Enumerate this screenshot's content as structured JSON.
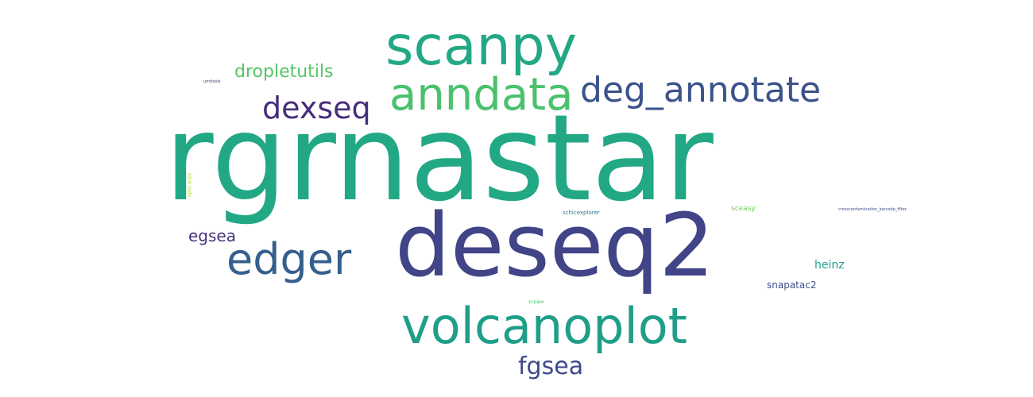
{
  "words": [
    {
      "text": "rgrnastar",
      "color": "#22a884"
    },
    {
      "text": "deseq2",
      "color": "#414487"
    },
    {
      "text": "scanpy",
      "color": "#22a884"
    },
    {
      "text": "volcanoplot",
      "color": "#1f9e89"
    },
    {
      "text": "anndata",
      "color": "#4ac16d"
    },
    {
      "text": "deg_annotate",
      "color": "#3b528b"
    },
    {
      "text": "edger",
      "color": "#355f8d"
    },
    {
      "text": "dexseq",
      "color": "#472d7b"
    },
    {
      "text": "dropletutils",
      "color": "#54c568"
    },
    {
      "text": "fgsea",
      "color": "#3e4989"
    },
    {
      "text": "egsea",
      "color": "#46327e"
    },
    {
      "text": "heinz",
      "color": "#1fa088"
    },
    {
      "text": "snapatac2",
      "color": "#3b528b"
    },
    {
      "text": "schicexplorer",
      "color": "#2a788e"
    },
    {
      "text": "sceasy",
      "color": "#6ece58"
    },
    {
      "text": "scpipe",
      "color": "#4ac16d"
    },
    {
      "text": "crosscontamination_barcode_filter",
      "color": "#3e4989"
    },
    {
      "text": "umitools",
      "color": "#46327e"
    },
    {
      "text": "episcanpy",
      "color": "#b5de2b"
    }
  ]
}
